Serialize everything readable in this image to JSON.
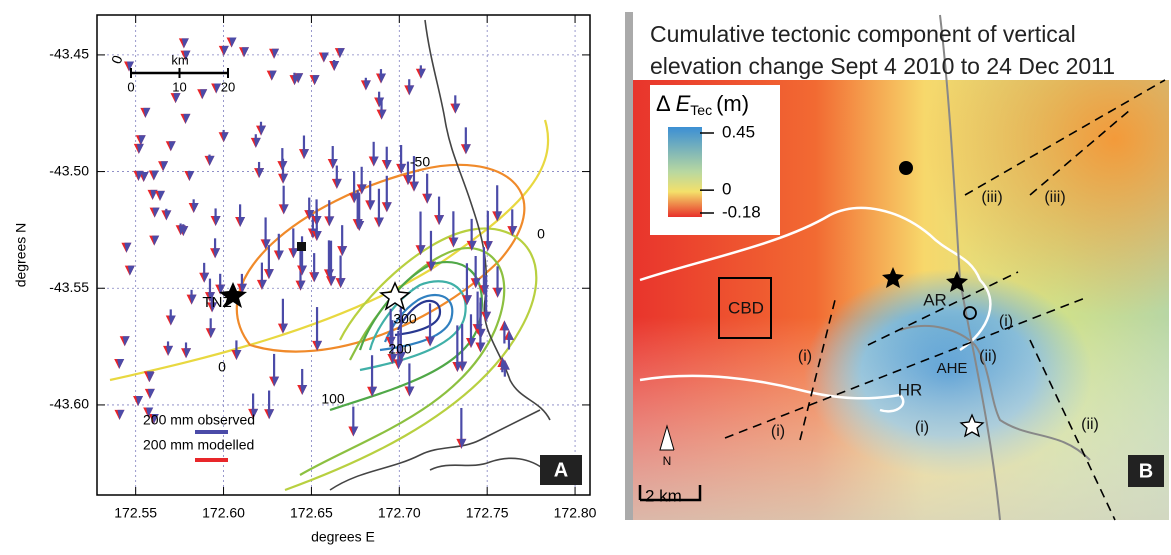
{
  "panel_a": {
    "label": "A",
    "xlabel": "degrees E",
    "ylabel": "degrees N",
    "xlim": [
      172.528,
      172.8085
    ],
    "ylim": [
      -43.6386,
      -43.4329
    ],
    "xticks": [
      172.55,
      {
        "value": 172.6,
        "label": "172.60"
      },
      172.65,
      {
        "value": 172.7,
        "label": "172.70"
      },
      172.75,
      {
        "value": 172.8,
        "label": "172.80"
      }
    ],
    "yticks": [
      -43.45,
      {
        "value": -43.5,
        "label": "-43.50"
      },
      -43.55,
      {
        "value": -43.6,
        "label": "-43.60"
      }
    ],
    "grid": true,
    "scale_bar": {
      "unit": "km",
      "ticks": [
        0,
        10,
        20
      ]
    },
    "contour_labels": [
      0,
      -50,
      0,
      0,
      100,
      200,
      300
    ],
    "station": "TNZ",
    "legend": [
      {
        "label": "200 mm observed",
        "color": "#4b4ba8"
      },
      {
        "label": "200 mm modelled",
        "color": "#e8262a"
      }
    ]
  },
  "panel_b": {
    "label": "B",
    "title": [
      "Cumulative tectonic component of vertical",
      "elevation change Sept 4 2010 to 24 Dec 2011"
    ],
    "colorbar": {
      "symbol": "Δ",
      "variable": "E",
      "subscript": "Tec",
      "unit": "(m)",
      "lim": [
        -0.18,
        0.45
      ],
      "ticks": [
        0.45,
        0,
        -0.18
      ]
    },
    "labels": [
      "CBD",
      "AR",
      "AHE",
      "HR",
      "(i)",
      "(i)",
      "(i)",
      "(i)",
      "(ii)",
      "(ii)",
      "(iii)",
      "(iii)"
    ],
    "north": "N",
    "scale": "2 km"
  }
}
